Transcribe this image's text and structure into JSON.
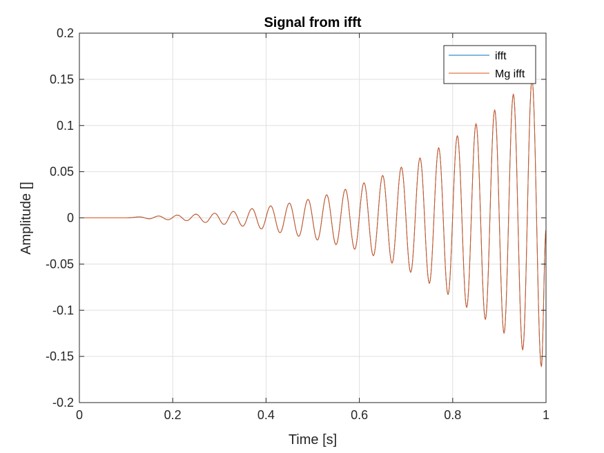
{
  "chart_data": {
    "type": "line",
    "title": "Signal from ifft",
    "xlabel": "Time [s]",
    "ylabel": "Amplitude []",
    "xlim": [
      0,
      1
    ],
    "ylim": [
      -0.2,
      0.2
    ],
    "xticks": [
      0,
      0.2,
      0.4,
      0.6,
      0.8,
      1
    ],
    "xtick_labels": [
      "0",
      "0.2",
      "0.4",
      "0.6",
      "0.8",
      "1"
    ],
    "yticks": [
      -0.2,
      -0.15,
      -0.1,
      -0.05,
      0,
      0.05,
      0.1,
      0.15,
      0.2
    ],
    "ytick_labels": [
      "-0.2",
      "-0.15",
      "-0.1",
      "-0.05",
      "0",
      "0.05",
      "0.1",
      "0.15",
      "0.2"
    ],
    "grid": true,
    "legend_position": "top-right",
    "series": [
      {
        "name": "ifft",
        "color": "#0072BD",
        "x": [
          0,
          0.1,
          0.13,
          0.15,
          0.17,
          0.19,
          0.21,
          0.23,
          0.25,
          0.27,
          0.29,
          0.31,
          0.33,
          0.35,
          0.37,
          0.39,
          0.41,
          0.43,
          0.45,
          0.47,
          0.49,
          0.51,
          0.53,
          0.55,
          0.57,
          0.59,
          0.61,
          0.63,
          0.65,
          0.67,
          0.69,
          0.71,
          0.73,
          0.75,
          0.77,
          0.79,
          0.81,
          0.83,
          0.85,
          0.87,
          0.89,
          0.91,
          0.93,
          0.95,
          0.97,
          0.99,
          1.0
        ],
        "y": [
          0,
          0,
          0.001,
          -0.001,
          0.002,
          -0.002,
          0.003,
          -0.003,
          0.004,
          -0.005,
          0.005,
          -0.007,
          0.007,
          -0.009,
          0.01,
          -0.012,
          0.013,
          -0.016,
          0.016,
          -0.02,
          0.02,
          -0.024,
          0.025,
          -0.029,
          0.031,
          -0.034,
          0.038,
          -0.041,
          0.046,
          -0.049,
          0.055,
          -0.059,
          0.065,
          -0.071,
          0.076,
          -0.083,
          0.089,
          -0.097,
          0.102,
          -0.11,
          0.117,
          -0.125,
          0.134,
          -0.143,
          0.15,
          -0.161,
          -0.013
        ]
      },
      {
        "name": "Mg ifft",
        "color": "#D95319",
        "x": [
          0,
          0.1,
          0.13,
          0.15,
          0.17,
          0.19,
          0.21,
          0.23,
          0.25,
          0.27,
          0.29,
          0.31,
          0.33,
          0.35,
          0.37,
          0.39,
          0.41,
          0.43,
          0.45,
          0.47,
          0.49,
          0.51,
          0.53,
          0.55,
          0.57,
          0.59,
          0.61,
          0.63,
          0.65,
          0.67,
          0.69,
          0.71,
          0.73,
          0.75,
          0.77,
          0.79,
          0.81,
          0.83,
          0.85,
          0.87,
          0.89,
          0.91,
          0.93,
          0.95,
          0.97,
          0.99,
          1.0
        ],
        "y": [
          0,
          0,
          0.001,
          -0.001,
          0.002,
          -0.002,
          0.003,
          -0.003,
          0.004,
          -0.005,
          0.005,
          -0.007,
          0.007,
          -0.009,
          0.01,
          -0.012,
          0.013,
          -0.016,
          0.016,
          -0.02,
          0.02,
          -0.024,
          0.025,
          -0.029,
          0.031,
          -0.034,
          0.038,
          -0.041,
          0.046,
          -0.049,
          0.055,
          -0.059,
          0.065,
          -0.071,
          0.076,
          -0.083,
          0.089,
          -0.097,
          0.102,
          -0.11,
          0.117,
          -0.125,
          0.134,
          -0.143,
          0.15,
          -0.161,
          -0.013
        ]
      }
    ]
  }
}
